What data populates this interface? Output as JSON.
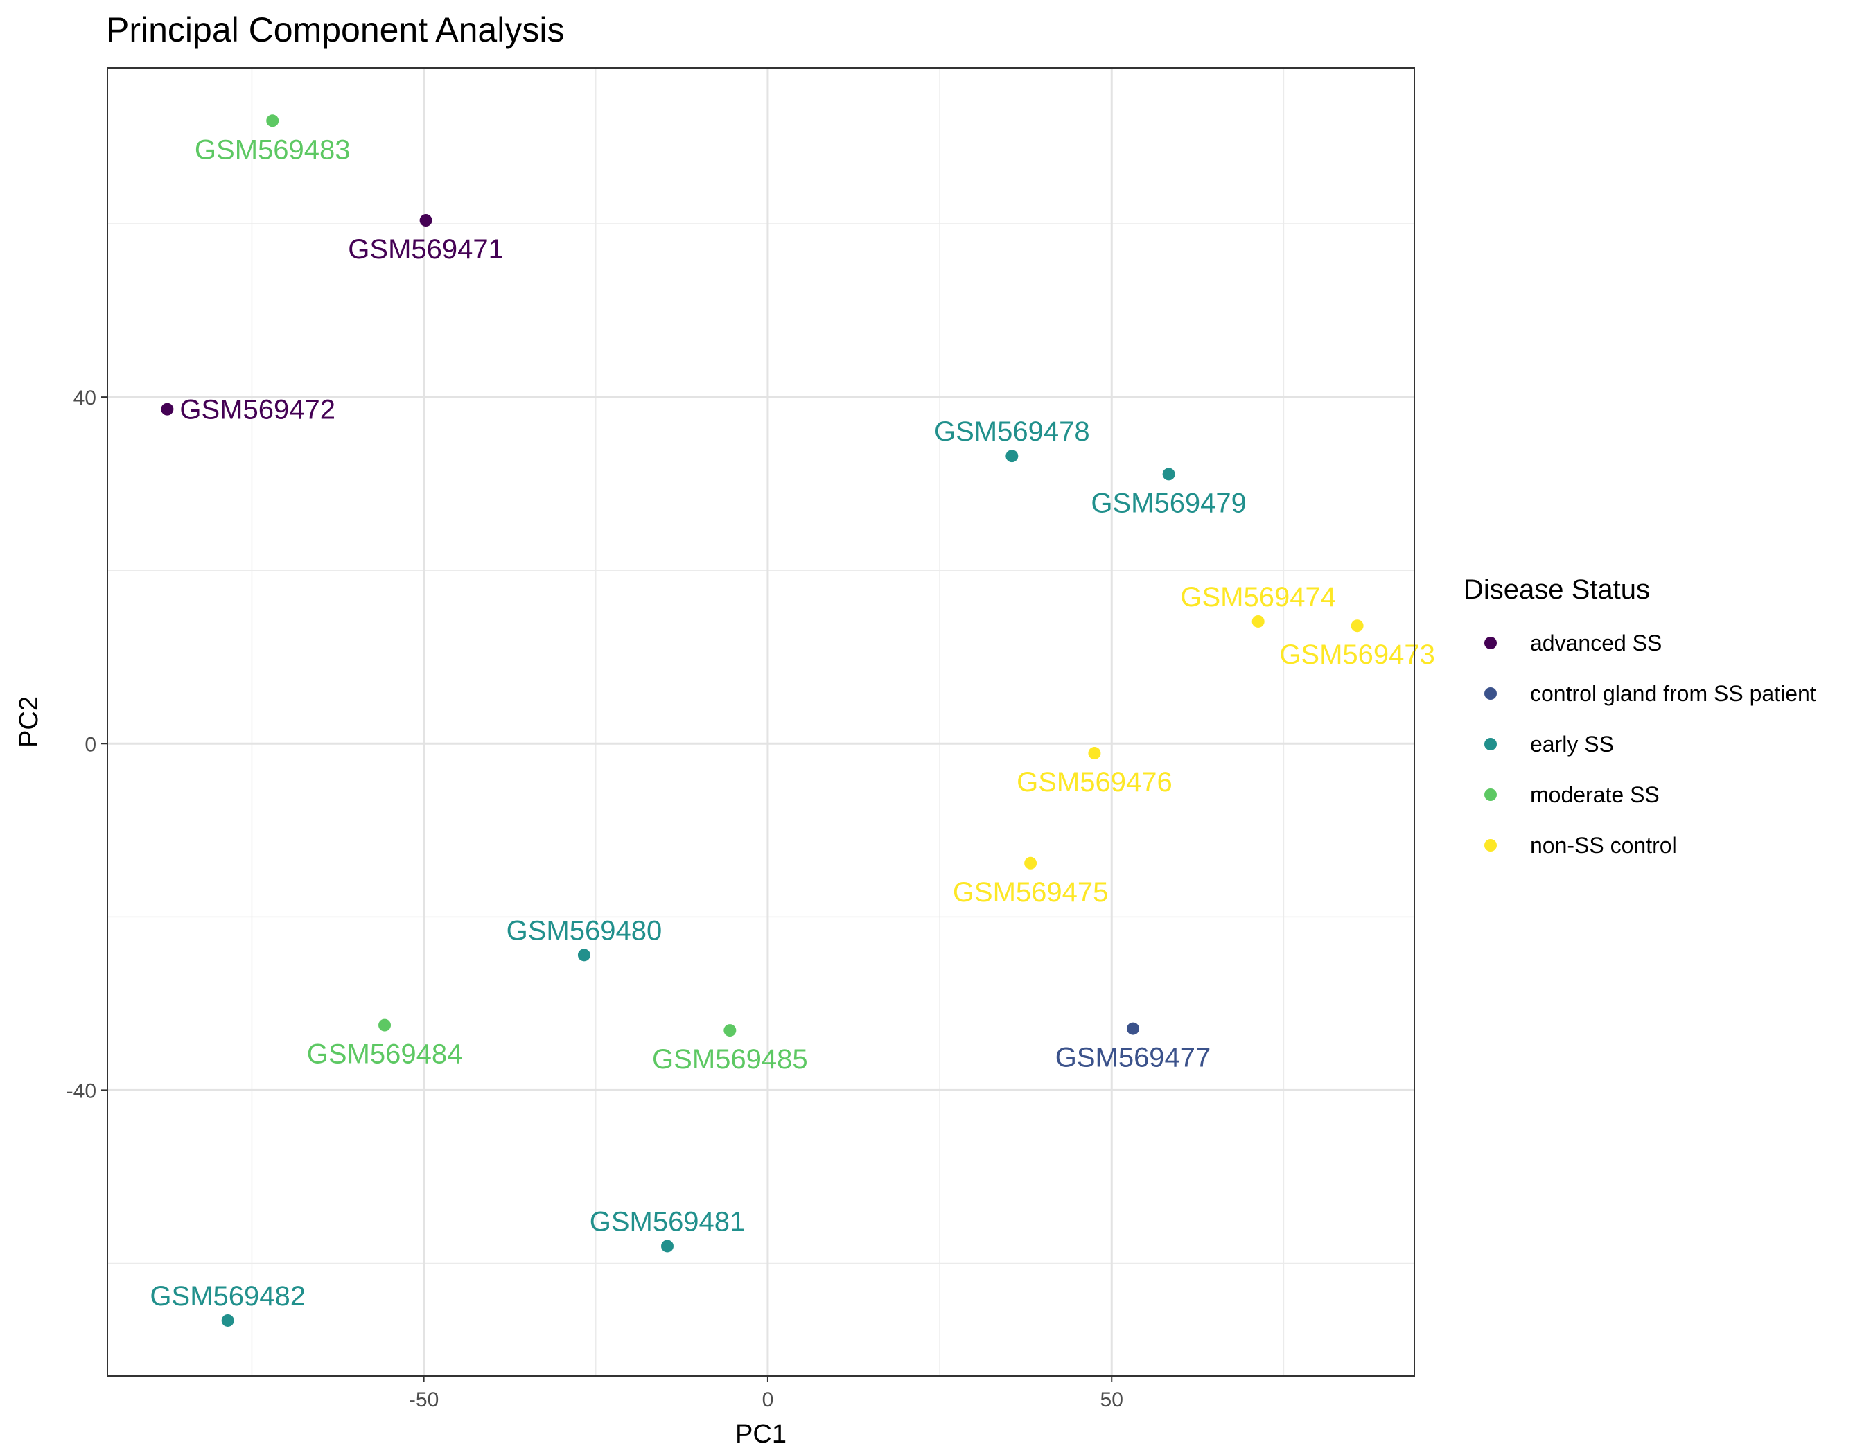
{
  "chart_data": {
    "type": "scatter",
    "title": "Principal Component Analysis",
    "xlabel": "PC1",
    "ylabel": "PC2",
    "xlim": [
      -96,
      94
    ],
    "ylim": [
      -73,
      78
    ],
    "x_ticks": [
      -50,
      0,
      50
    ],
    "y_ticks": [
      -40,
      0,
      40
    ],
    "grid": true,
    "legend": {
      "title": "Disease Status",
      "placement": "right",
      "entries": [
        {
          "label": "advanced SS",
          "color": "#440154"
        },
        {
          "label": "control gland from SS patient",
          "color": "#3B528B"
        },
        {
          "label": "early SS",
          "color": "#21908C"
        },
        {
          "label": "moderate SS",
          "color": "#5DC863"
        },
        {
          "label": "non-SS control",
          "color": "#FDE725"
        }
      ]
    },
    "series": [
      {
        "name": "advanced SS",
        "color": "#440154",
        "points": [
          {
            "x": -49.7,
            "y": 60.4,
            "label": "GSM569471",
            "anchor": "below"
          },
          {
            "x": -87.3,
            "y": 38.6,
            "label": "GSM569472",
            "anchor": "right"
          }
        ]
      },
      {
        "name": "control gland from SS patient",
        "color": "#3B528B",
        "points": [
          {
            "x": 53.1,
            "y": -32.9,
            "label": "GSM569477",
            "anchor": "below"
          }
        ]
      },
      {
        "name": "early SS",
        "color": "#21908C",
        "points": [
          {
            "x": 35.5,
            "y": 33.2,
            "label": "GSM569478",
            "anchor": "above"
          },
          {
            "x": 58.3,
            "y": 31.1,
            "label": "GSM569479",
            "anchor": "below"
          },
          {
            "x": -26.7,
            "y": -24.4,
            "label": "GSM569480",
            "anchor": "above"
          },
          {
            "x": -14.6,
            "y": -58.0,
            "label": "GSM569481",
            "anchor": "above"
          },
          {
            "x": -78.5,
            "y": -66.6,
            "label": "GSM569482",
            "anchor": "above"
          }
        ]
      },
      {
        "name": "moderate SS",
        "color": "#5DC863",
        "points": [
          {
            "x": -72.0,
            "y": 71.9,
            "label": "GSM569483",
            "anchor": "below"
          },
          {
            "x": -55.7,
            "y": -32.5,
            "label": "GSM569484",
            "anchor": "below"
          },
          {
            "x": -5.5,
            "y": -33.1,
            "label": "GSM569485",
            "anchor": "below"
          }
        ]
      },
      {
        "name": "non-SS control",
        "color": "#FDE725",
        "points": [
          {
            "x": 85.7,
            "y": 13.6,
            "label": "GSM569473",
            "anchor": "below"
          },
          {
            "x": 71.3,
            "y": 14.1,
            "label": "GSM569474",
            "anchor": "above"
          },
          {
            "x": 38.2,
            "y": -13.8,
            "label": "GSM569475",
            "anchor": "below"
          },
          {
            "x": 47.5,
            "y": -1.1,
            "label": "GSM569476",
            "anchor": "below"
          }
        ]
      }
    ]
  }
}
